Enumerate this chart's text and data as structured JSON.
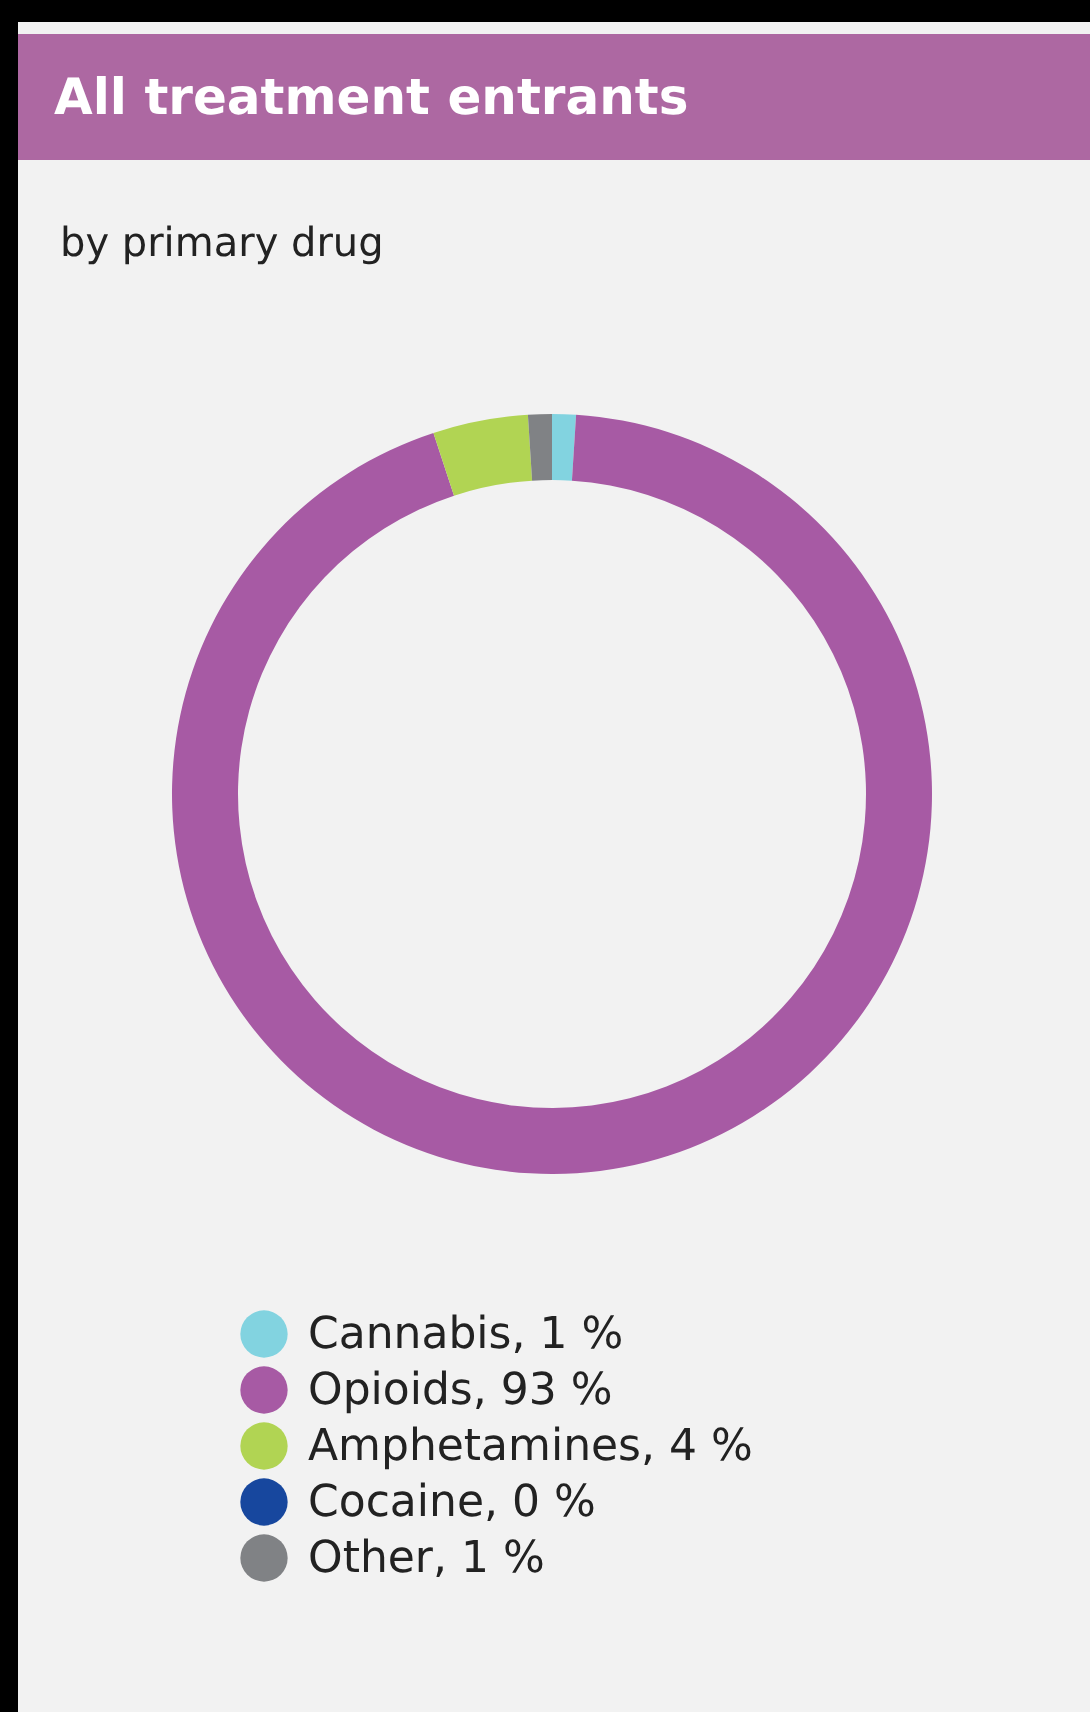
{
  "chart_data": {
    "type": "donut",
    "title": "All treatment entrants",
    "subtitle": "by primary drug",
    "categories": [
      "Cannabis",
      "Opioids",
      "Amphetamines",
      "Cocaine",
      "Other"
    ],
    "values": [
      1,
      93,
      4,
      0,
      1
    ],
    "value_labels": [
      "1 %",
      "93 %",
      "4 %",
      "0 %",
      "1 %"
    ],
    "colors": [
      "#82d3e0",
      "#a75aa4",
      "#b1d453",
      "#17479e",
      "#808285"
    ],
    "legend": "bottom"
  }
}
